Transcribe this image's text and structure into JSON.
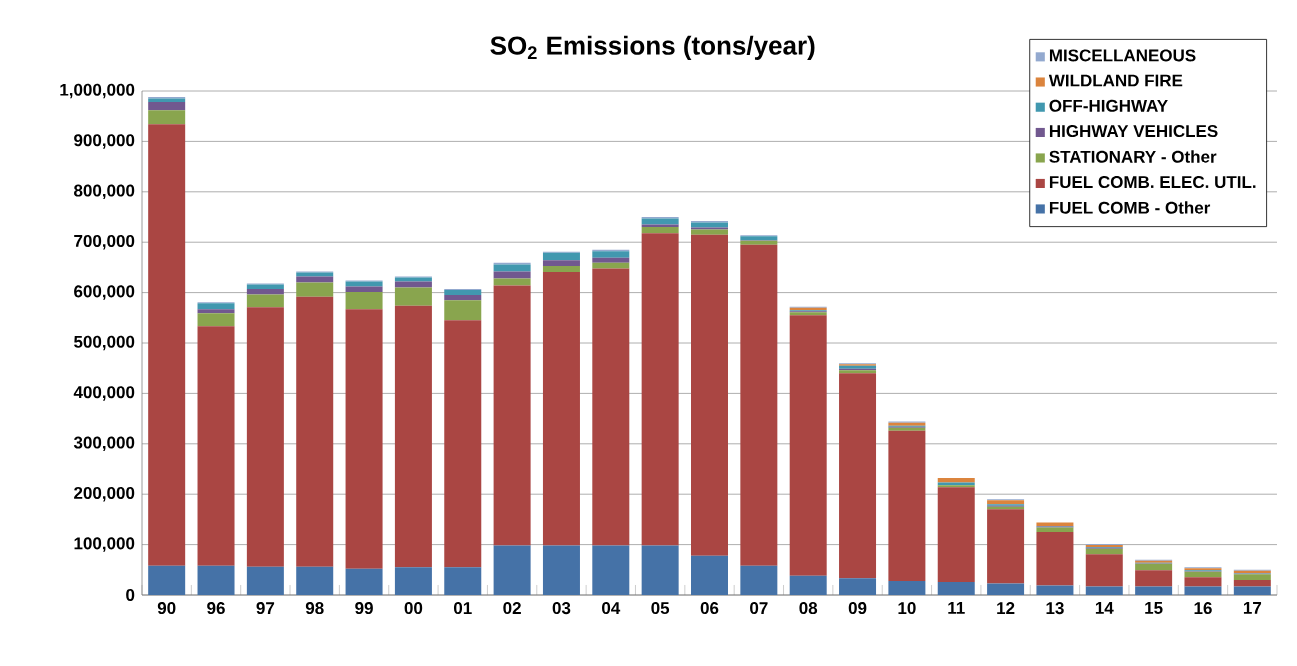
{
  "chart_data": {
    "type": "bar",
    "title": "SO$_{2}$ Emissions (tons/year)",
    "stacked": true,
    "grid": "y",
    "legend": "top right",
    "categories": [
      "90",
      "96",
      "97",
      "98",
      "99",
      "00",
      "01",
      "02",
      "03",
      "04",
      "05",
      "06",
      "07",
      "08",
      "09",
      "10",
      "11",
      "12",
      "13",
      "14",
      "15",
      "16",
      "17"
    ],
    "ylim": [
      0,
      1000000
    ],
    "yticks": [
      0,
      {
        "value": 100000,
        "label": "100,000"
      },
      {
        "value": 200000,
        "label": "200,000"
      },
      {
        "value": 300000,
        "label": "300,000"
      },
      {
        "value": 400000,
        "label": "400,000"
      },
      {
        "value": 500000,
        "label": "500,000"
      },
      {
        "value": 600000,
        "label": "600,000"
      },
      {
        "value": 700000,
        "label": "700,000"
      },
      {
        "value": 800000,
        "label": "800,000"
      },
      {
        "value": 900000,
        "label": "900,000"
      },
      {
        "value": 1000000,
        "label": "1,000,000"
      }
    ],
    "series": [
      {
        "name": "FUEL COMB - Other",
        "color": "#4572a7",
        "values": [
          58000,
          58000,
          56000,
          56000,
          52000,
          55000,
          55000,
          98000,
          98000,
          98000,
          98000,
          78000,
          58000,
          38000,
          33000,
          28000,
          26000,
          23000,
          19000,
          17000,
          17000,
          17000,
          17000
        ]
      },
      {
        "name": "FUEL COMB. ELEC. UTIL.",
        "color": "#aa4643",
        "values": [
          876000,
          475000,
          515000,
          536000,
          515000,
          519000,
          490000,
          516000,
          543000,
          550000,
          620000,
          637000,
          637000,
          517000,
          407000,
          298000,
          188000,
          147000,
          106000,
          64000,
          32000,
          18000,
          13000
        ]
      },
      {
        "name": "STATIONARY - Other",
        "color": "#89a54e",
        "values": [
          28000,
          26000,
          25000,
          28000,
          34000,
          36000,
          40000,
          14000,
          12000,
          11000,
          12000,
          10000,
          8000,
          6000,
          6000,
          6000,
          4000,
          5000,
          9000,
          11000,
          13000,
          11000,
          11000
        ]
      },
      {
        "name": "HIGHWAY VEHICLES",
        "color": "#71588f",
        "values": [
          16000,
          8000,
          11000,
          12000,
          11000,
          12000,
          10000,
          14000,
          11000,
          10000,
          5000,
          4000,
          1000,
          2000,
          3000,
          2000,
          null,
          2000,
          2000,
          2000,
          1000,
          1000,
          1000
        ]
      },
      {
        "name": "OFF-HIGHWAY",
        "color": "#4198af",
        "values": [
          7000,
          12000,
          9000,
          8000,
          10000,
          8000,
          10000,
          14000,
          15000,
          13000,
          12000,
          10000,
          8000,
          2000,
          6000,
          2000,
          5000,
          3000,
          1000,
          1000,
          1000,
          2000,
          1000
        ]
      },
      {
        "name": "WILDLAND FIRE",
        "color": "#db843d",
        "values": [
          0,
          0,
          0,
          0,
          0,
          0,
          0,
          0,
          0,
          0,
          0,
          0,
          0,
          5000,
          3000,
          6000,
          9000,
          8000,
          7000,
          4000,
          4000,
          4000,
          5000
        ]
      },
      {
        "name": "MISCELLANEOUS",
        "color": "#93a9cf",
        "values": [
          3000,
          2000,
          2000,
          2000,
          2000,
          2000,
          2000,
          3000,
          2000,
          3000,
          3000,
          3000,
          2000,
          2000,
          2000,
          2000,
          null,
          2000,
          null,
          2000,
          2000,
          2000,
          2000
        ]
      }
    ]
  }
}
